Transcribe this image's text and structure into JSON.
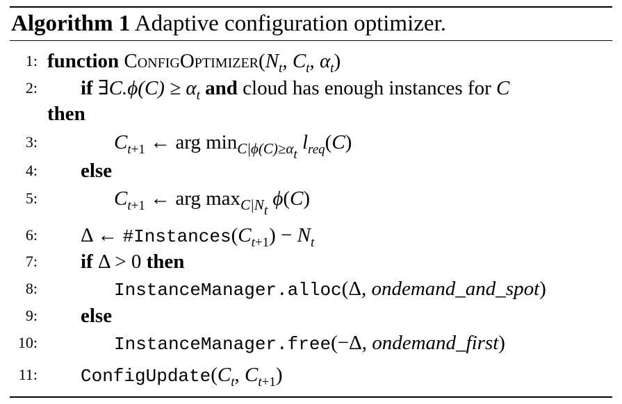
{
  "caption": {
    "label": "Algorithm 1",
    "text": "Adaptive configuration optimizer."
  },
  "lines": {
    "l1": {
      "num": "1:",
      "kw": "function",
      "name": "ConfigOptimizer"
    },
    "l2": {
      "num": "2:",
      "kw_if": "if",
      "cond_a": "∃C.ϕ(C)  ≥  α",
      "kw_and": "and",
      "cond_b": "cloud has enough instances for",
      "var": "C",
      "kw_then": "then"
    },
    "l3": {
      "num": "3:"
    },
    "l4": {
      "num": "4:",
      "kw": "else"
    },
    "l5": {
      "num": "5:"
    },
    "l6": {
      "num": "6:",
      "func": "#Instances"
    },
    "l7": {
      "num": "7:",
      "kw_if": "if",
      "cond": "Δ > 0",
      "kw_then": "then"
    },
    "l8": {
      "num": "8:",
      "call": "InstanceManager.alloc",
      "arg": "ondemand_and_spot"
    },
    "l9": {
      "num": "9:",
      "kw": "else"
    },
    "l10": {
      "num": "10:",
      "call": "InstanceManager.free",
      "arg": "ondemand_first"
    },
    "l11": {
      "num": "11:",
      "call": "ConfigUpdate"
    }
  }
}
